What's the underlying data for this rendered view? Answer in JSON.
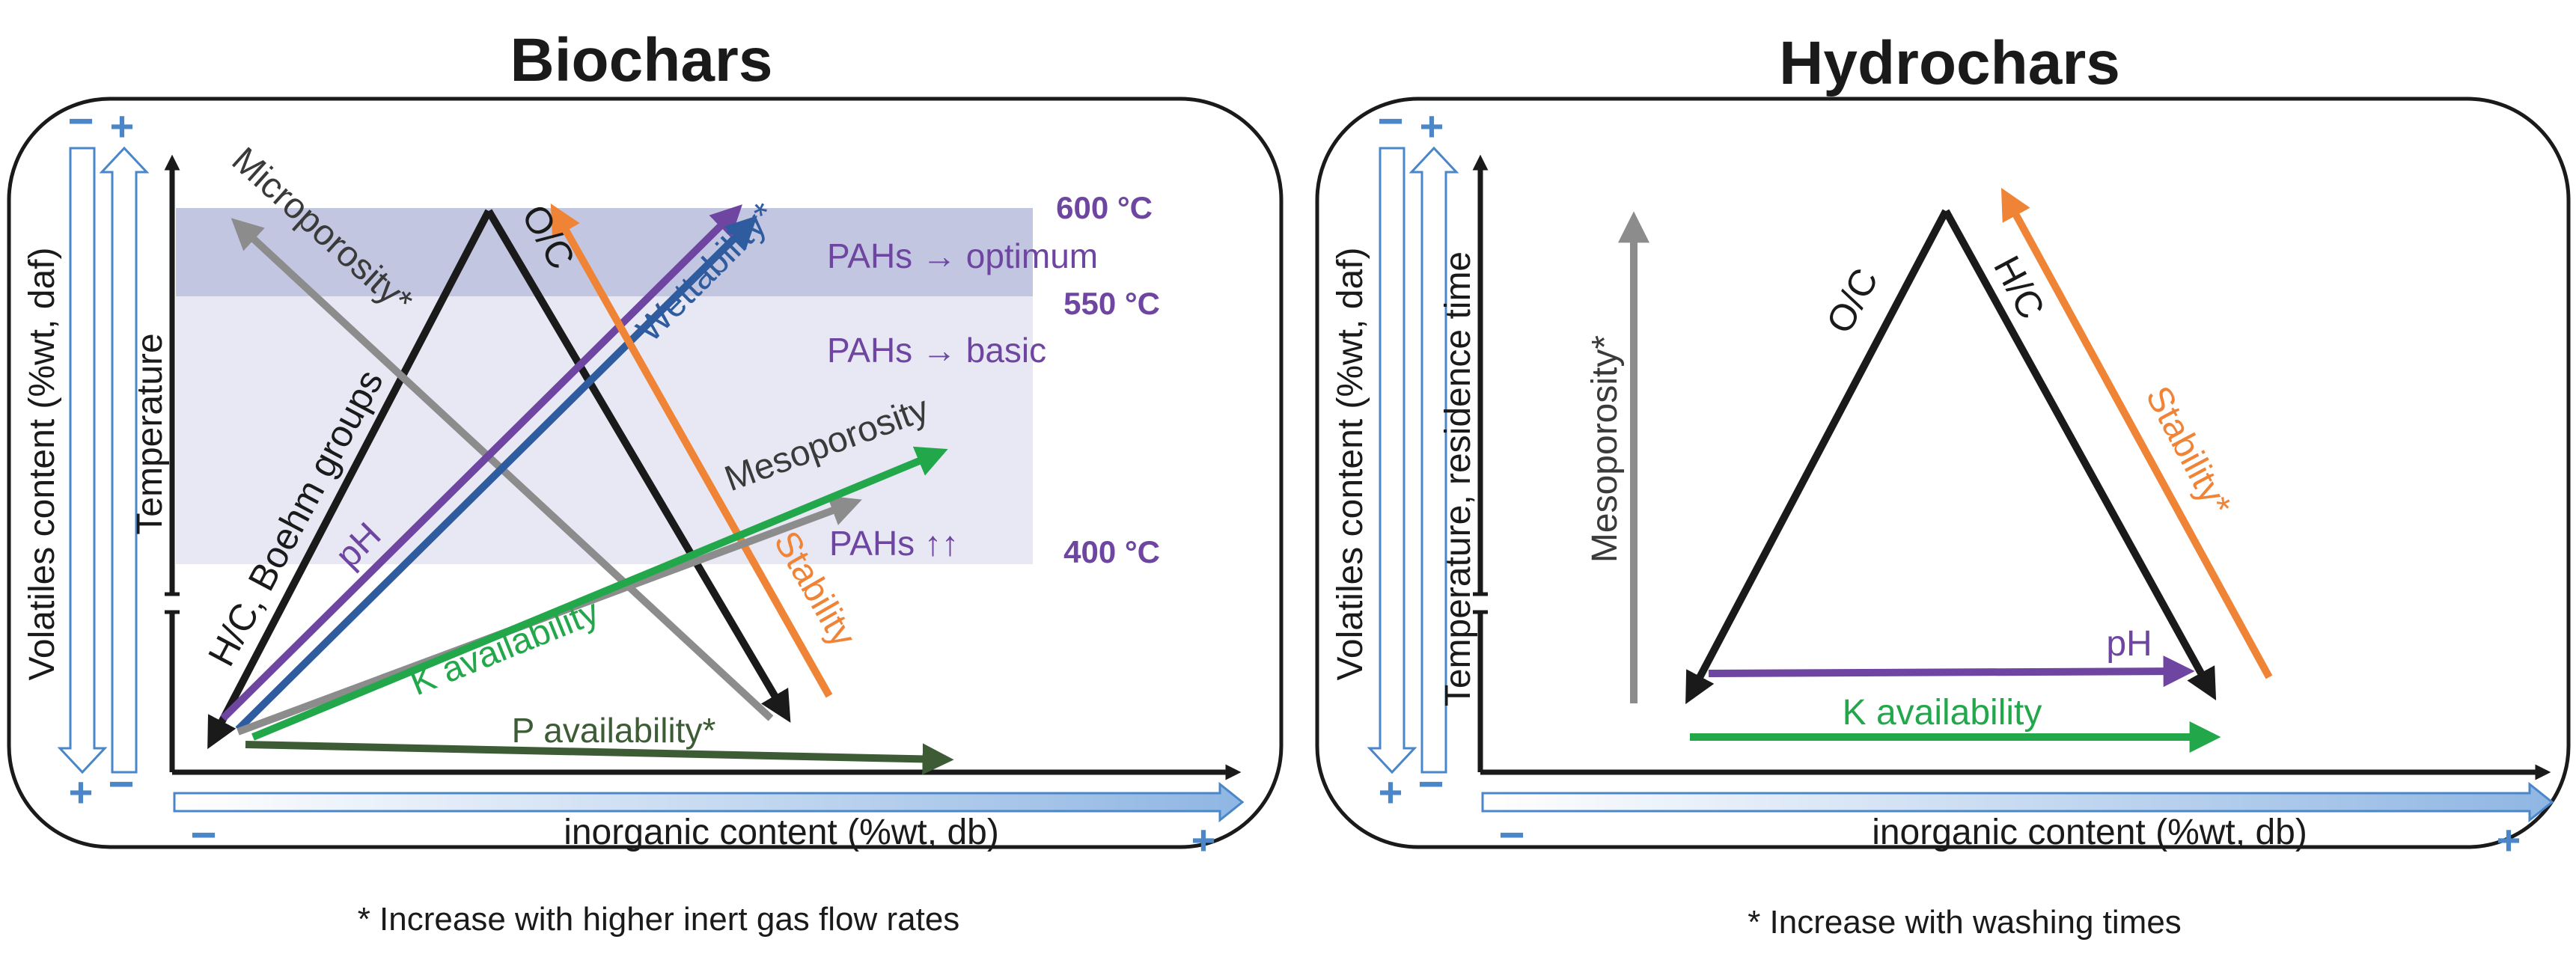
{
  "biochars": {
    "title": "Biochars",
    "y_axis_label": "Volatiles content (%wt, daf)",
    "x_axis_label": "inorganic content (%wt, db)",
    "axis_label": "Temperature",
    "footnote": "* Increase with higher inert gas flow rates",
    "temps": {
      "t600": "600 °C",
      "t550": "550 °C",
      "t400": "400 °C"
    },
    "pahs": {
      "optimum": "PAHs → optimum",
      "basic": "PAHs → basic",
      "up": "PAHs ↑↑"
    },
    "arrows": {
      "hc_boehm": "H/C, Boehm groups",
      "oc": "O/C",
      "microporosity": "Microporosity*",
      "ph": "pH",
      "wettability": "Wettability*",
      "stability": "Stability",
      "mesoporosity": "Mesoporosity",
      "k_availability": "K availability",
      "p_availability": "P availability*"
    }
  },
  "hydrochars": {
    "title": "Hydrochars",
    "y_axis_label": "Volatiles content (%wt, daf)",
    "x_axis_label": "inorganic content (%wt, db)",
    "axis_label": "Temperature, residence time",
    "footnote": "* Increase with washing times",
    "arrows": {
      "mesoporosity": "Mesoporosity*",
      "oc": "O/C",
      "hc": "H/C",
      "stability": "Stability*",
      "ph": "pH",
      "k_availability": "K availability"
    }
  },
  "signs": {
    "minus": "−",
    "plus": "+"
  },
  "colors": {
    "black": "#1a1a1a",
    "purple": "#6e45a0",
    "blue": "#2f5c9e",
    "orange": "#ef8437",
    "green": "#22a84b",
    "darkgreen": "#3d5c35",
    "gray": "#8c8c8c",
    "band_dark": "#b8bcdc",
    "band_light": "#e7e8f4",
    "axis_blue": "#4a86c8"
  }
}
